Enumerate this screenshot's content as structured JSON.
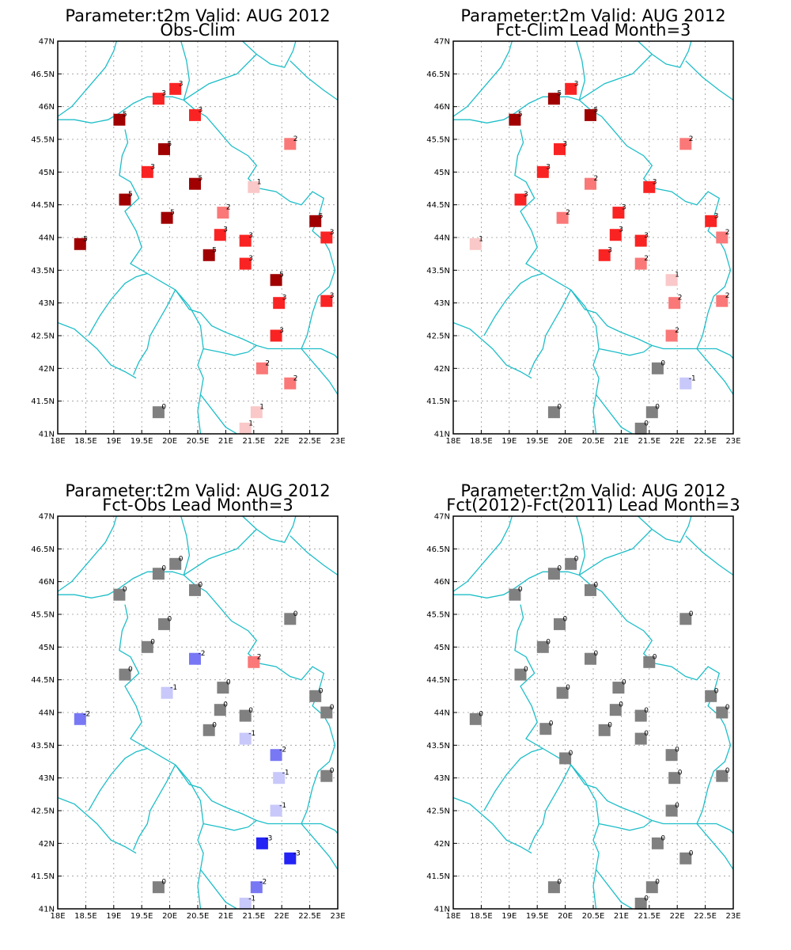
{
  "figure": {
    "x_ticks": [
      "18E",
      "18.5E",
      "19E",
      "19.5E",
      "20E",
      "20.5E",
      "21E",
      "21.5E",
      "22E",
      "22.5E",
      "23E"
    ],
    "y_ticks": [
      "41N",
      "41.5N",
      "42N",
      "42.5N",
      "43N",
      "43.5N",
      "44N",
      "44.5N",
      "45N",
      "45.5N",
      "46N",
      "46.5N",
      "47N"
    ]
  },
  "colors": {
    "neg3": "#2323f5",
    "neg2": "#7878f5",
    "neg1": "#c8c8fa",
    "zero": "#808080",
    "pos1": "#fac8c8",
    "pos2": "#fa7878",
    "pos3": "#fa2323",
    "pos4": "#dc1e1e",
    "pos5": "#a00000",
    "border": "#1ebec8",
    "grid": "#999999"
  },
  "panels": [
    {
      "title1": "Parameter:t2m Valid: AUG 2012",
      "title2": "Obs-Clim",
      "stations": [
        {
          "lon": 18.4,
          "lat": 43.9,
          "v": 5
        },
        {
          "lon": 19.1,
          "lat": 45.8,
          "v": 5
        },
        {
          "lon": 19.8,
          "lat": 46.12,
          "v": 3
        },
        {
          "lon": 20.1,
          "lat": 46.27,
          "v": 3
        },
        {
          "lon": 19.2,
          "lat": 44.58,
          "v": 5
        },
        {
          "lon": 19.9,
          "lat": 45.35,
          "v": 5
        },
        {
          "lon": 19.6,
          "lat": 45.0,
          "v": 3
        },
        {
          "lon": 20.45,
          "lat": 45.87,
          "v": 3
        },
        {
          "lon": 20.45,
          "lat": 44.82,
          "v": 5
        },
        {
          "lon": 19.95,
          "lat": 44.3,
          "v": 5
        },
        {
          "lon": 20.95,
          "lat": 44.38,
          "v": 2
        },
        {
          "lon": 20.7,
          "lat": 43.73,
          "v": 5
        },
        {
          "lon": 20.9,
          "lat": 44.04,
          "v": 3
        },
        {
          "lon": 21.35,
          "lat": 43.95,
          "v": 3
        },
        {
          "lon": 21.35,
          "lat": 43.6,
          "v": 3
        },
        {
          "lon": 21.5,
          "lat": 44.77,
          "v": 1
        },
        {
          "lon": 22.15,
          "lat": 45.43,
          "v": 2
        },
        {
          "lon": 22.6,
          "lat": 44.25,
          "v": 5
        },
        {
          "lon": 22.8,
          "lat": 44.0,
          "v": 3
        },
        {
          "lon": 21.9,
          "lat": 43.35,
          "v": 5
        },
        {
          "lon": 21.95,
          "lat": 43.0,
          "v": 3
        },
        {
          "lon": 22.8,
          "lat": 43.03,
          "v": 3
        },
        {
          "lon": 21.9,
          "lat": 42.5,
          "v": 3
        },
        {
          "lon": 21.65,
          "lat": 42.0,
          "v": 2
        },
        {
          "lon": 22.15,
          "lat": 41.77,
          "v": 2
        },
        {
          "lon": 21.55,
          "lat": 41.33,
          "v": 1
        },
        {
          "lon": 21.35,
          "lat": 41.08,
          "v": 1
        },
        {
          "lon": 19.8,
          "lat": 41.33,
          "v": 0
        }
      ]
    },
    {
      "title1": "Parameter:t2m Valid: AUG 2012",
      "title2": "Fct-Clim Lead Month=3",
      "stations": [
        {
          "lon": 18.4,
          "lat": 43.9,
          "v": 1
        },
        {
          "lon": 19.1,
          "lat": 45.8,
          "v": 5
        },
        {
          "lon": 19.8,
          "lat": 46.12,
          "v": 5
        },
        {
          "lon": 20.1,
          "lat": 46.27,
          "v": 3
        },
        {
          "lon": 19.2,
          "lat": 44.58,
          "v": 3
        },
        {
          "lon": 19.9,
          "lat": 45.35,
          "v": 3
        },
        {
          "lon": 19.6,
          "lat": 45.0,
          "v": 3
        },
        {
          "lon": 20.45,
          "lat": 45.87,
          "v": 5
        },
        {
          "lon": 20.45,
          "lat": 44.82,
          "v": 2
        },
        {
          "lon": 19.95,
          "lat": 44.3,
          "v": 2
        },
        {
          "lon": 20.95,
          "lat": 44.38,
          "v": 3
        },
        {
          "lon": 20.7,
          "lat": 43.73,
          "v": 3
        },
        {
          "lon": 20.9,
          "lat": 44.04,
          "v": 3
        },
        {
          "lon": 21.35,
          "lat": 43.95,
          "v": 3
        },
        {
          "lon": 21.35,
          "lat": 43.6,
          "v": 2
        },
        {
          "lon": 21.5,
          "lat": 44.77,
          "v": 3
        },
        {
          "lon": 22.15,
          "lat": 45.43,
          "v": 2
        },
        {
          "lon": 22.6,
          "lat": 44.25,
          "v": 3
        },
        {
          "lon": 22.8,
          "lat": 44.0,
          "v": 2
        },
        {
          "lon": 21.9,
          "lat": 43.35,
          "v": 1
        },
        {
          "lon": 21.95,
          "lat": 43.0,
          "v": 2
        },
        {
          "lon": 22.8,
          "lat": 43.03,
          "v": 2
        },
        {
          "lon": 21.9,
          "lat": 42.5,
          "v": 2
        },
        {
          "lon": 21.65,
          "lat": 42.0,
          "v": 0
        },
        {
          "lon": 22.15,
          "lat": 41.77,
          "v": -1
        },
        {
          "lon": 21.55,
          "lat": 41.33,
          "v": 0
        },
        {
          "lon": 21.35,
          "lat": 41.08,
          "v": 0
        },
        {
          "lon": 19.8,
          "lat": 41.33,
          "v": 0
        }
      ]
    },
    {
      "title1": "Parameter:t2m Valid: AUG 2012",
      "title2": "Fct-Obs Lead Month=3",
      "stations": [
        {
          "lon": 18.4,
          "lat": 43.9,
          "v": -2
        },
        {
          "lon": 19.1,
          "lat": 45.8,
          "v": 0
        },
        {
          "lon": 19.8,
          "lat": 46.12,
          "v": 0
        },
        {
          "lon": 20.1,
          "lat": 46.27,
          "v": 0
        },
        {
          "lon": 19.2,
          "lat": 44.58,
          "v": 0
        },
        {
          "lon": 19.9,
          "lat": 45.35,
          "v": 0
        },
        {
          "lon": 19.6,
          "lat": 45.0,
          "v": 0
        },
        {
          "lon": 20.45,
          "lat": 45.87,
          "v": 0
        },
        {
          "lon": 20.45,
          "lat": 44.82,
          "v": -2
        },
        {
          "lon": 19.95,
          "lat": 44.3,
          "v": -1
        },
        {
          "lon": 20.95,
          "lat": 44.38,
          "v": 0
        },
        {
          "lon": 20.7,
          "lat": 43.73,
          "v": 0
        },
        {
          "lon": 20.9,
          "lat": 44.04,
          "v": 0
        },
        {
          "lon": 21.35,
          "lat": 43.95,
          "v": 0
        },
        {
          "lon": 21.35,
          "lat": 43.6,
          "v": -1
        },
        {
          "lon": 21.5,
          "lat": 44.77,
          "v": 2
        },
        {
          "lon": 22.15,
          "lat": 45.43,
          "v": 0
        },
        {
          "lon": 22.6,
          "lat": 44.25,
          "v": 0
        },
        {
          "lon": 22.8,
          "lat": 44.0,
          "v": 0
        },
        {
          "lon": 21.9,
          "lat": 43.35,
          "v": -2
        },
        {
          "lon": 21.95,
          "lat": 43.0,
          "v": -1
        },
        {
          "lon": 22.8,
          "lat": 43.03,
          "v": 0
        },
        {
          "lon": 21.9,
          "lat": 42.5,
          "v": -1
        },
        {
          "lon": 21.65,
          "lat": 42.0,
          "v": -3
        },
        {
          "lon": 22.15,
          "lat": 41.77,
          "v": -3
        },
        {
          "lon": 21.55,
          "lat": 41.33,
          "v": -2
        },
        {
          "lon": 21.35,
          "lat": 41.08,
          "v": -1
        },
        {
          "lon": 19.8,
          "lat": 41.33,
          "v": 0
        }
      ]
    },
    {
      "title1": "Parameter:t2m Valid: AUG 2012",
      "title2": "Fct(2012)-Fct(2011) Lead Month=3",
      "stations": [
        {
          "lon": 18.4,
          "lat": 43.9,
          "v": 0
        },
        {
          "lon": 19.1,
          "lat": 45.8,
          "v": 0
        },
        {
          "lon": 19.8,
          "lat": 46.12,
          "v": 0
        },
        {
          "lon": 20.1,
          "lat": 46.27,
          "v": 0
        },
        {
          "lon": 19.2,
          "lat": 44.58,
          "v": 0
        },
        {
          "lon": 19.9,
          "lat": 45.35,
          "v": 0
        },
        {
          "lon": 19.6,
          "lat": 45.0,
          "v": 0
        },
        {
          "lon": 19.65,
          "lat": 43.75,
          "v": 0
        },
        {
          "lon": 20.45,
          "lat": 45.87,
          "v": 0
        },
        {
          "lon": 20.45,
          "lat": 44.82,
          "v": 0
        },
        {
          "lon": 19.95,
          "lat": 44.3,
          "v": 0
        },
        {
          "lon": 20.0,
          "lat": 43.3,
          "v": 0
        },
        {
          "lon": 20.95,
          "lat": 44.38,
          "v": 0
        },
        {
          "lon": 20.7,
          "lat": 43.73,
          "v": 0
        },
        {
          "lon": 20.9,
          "lat": 44.04,
          "v": 0
        },
        {
          "lon": 21.35,
          "lat": 43.95,
          "v": 0
        },
        {
          "lon": 21.35,
          "lat": 43.6,
          "v": 0
        },
        {
          "lon": 21.5,
          "lat": 44.77,
          "v": 0
        },
        {
          "lon": 22.15,
          "lat": 45.43,
          "v": 0
        },
        {
          "lon": 22.6,
          "lat": 44.25,
          "v": 0
        },
        {
          "lon": 22.8,
          "lat": 44.0,
          "v": 0
        },
        {
          "lon": 21.9,
          "lat": 43.35,
          "v": 0
        },
        {
          "lon": 21.95,
          "lat": 43.0,
          "v": 0
        },
        {
          "lon": 22.8,
          "lat": 43.03,
          "v": 0
        },
        {
          "lon": 21.9,
          "lat": 42.5,
          "v": 0
        },
        {
          "lon": 21.65,
          "lat": 42.0,
          "v": 0
        },
        {
          "lon": 22.15,
          "lat": 41.77,
          "v": 0
        },
        {
          "lon": 21.55,
          "lat": 41.33,
          "v": 0
        },
        {
          "lon": 21.35,
          "lat": 41.08,
          "v": 0
        },
        {
          "lon": 19.8,
          "lat": 41.33,
          "v": 0
        }
      ]
    }
  ]
}
